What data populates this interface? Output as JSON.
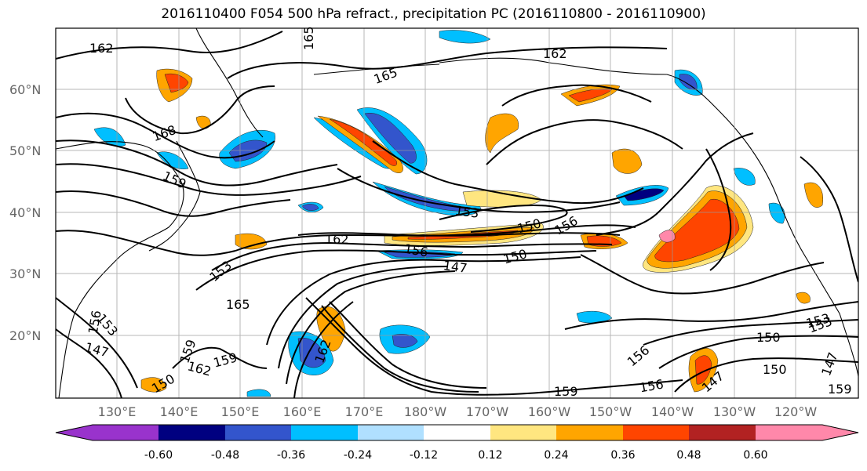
{
  "title": "2016110400 F054 500 hPa refract., precipitation PC (2016110800 - 2016110900)",
  "lat_labels": [
    "60°N",
    "50°N",
    "40°N",
    "30°N",
    "20°N"
  ],
  "lon_labels": [
    "130°E",
    "140°E",
    "150°E",
    "160°E",
    "170°E",
    "180°W",
    "170°W",
    "160°W",
    "150°W",
    "140°W",
    "130°W",
    "120°W"
  ],
  "contour_labels": [
    "162",
    "165",
    "162",
    "165",
    "168",
    "159",
    "153",
    "156",
    "150",
    "162",
    "156",
    "147",
    "150",
    "153",
    "165",
    "156",
    "153",
    "147",
    "162",
    "159",
    "162",
    "159",
    "150",
    "153",
    "156",
    "159",
    "156",
    "147",
    "150",
    "153",
    "150",
    "147",
    "159"
  ],
  "colorbar": {
    "ticks": [
      "-0.60",
      "-0.48",
      "-0.36",
      "-0.24",
      "-0.12",
      "0.12",
      "0.24",
      "0.36",
      "0.48",
      "0.60"
    ],
    "colors": [
      "#9933cc",
      "#000080",
      "#3355cc",
      "#00bfff",
      "#b0e0ff",
      "#ffffff",
      "#ffe680",
      "#ffa500",
      "#ff4500",
      "#b22222",
      "#ff88aa"
    ]
  },
  "fill_colors": {
    "neg1": "#00bfff",
    "neg2": "#3355cc",
    "neg3": "#000080",
    "neg4": "#9933cc",
    "pos1": "#ffe680",
    "pos2": "#ffa500",
    "pos3": "#ff4500",
    "pos4": "#b22222",
    "pos5": "#ff88aa"
  }
}
